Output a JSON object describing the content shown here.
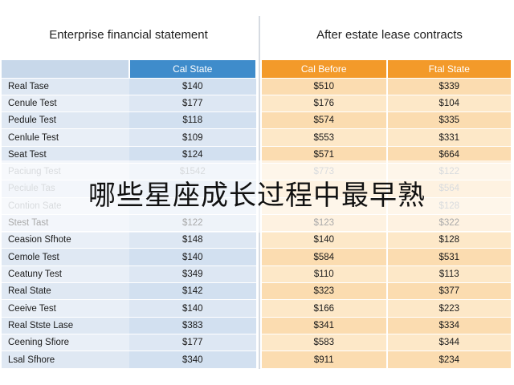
{
  "left_title": "Enterprise financial statement",
  "right_title": "After estate lease contracts",
  "left_table": {
    "header": "Cal State",
    "rows": [
      {
        "label": "Real Tase",
        "value": "$140"
      },
      {
        "label": "Cenule Test",
        "value": "$177"
      },
      {
        "label": "Pedule Test",
        "value": "$118"
      },
      {
        "label": "Cenlule Test",
        "value": "$109"
      },
      {
        "label": "Seat Test",
        "value": "$124"
      },
      {
        "label": "Paciung Test",
        "value": "$1542"
      },
      {
        "label": "Peciule Tas",
        "value": ""
      },
      {
        "label": "Contion Sate",
        "value": ""
      },
      {
        "label": "Stest Tast",
        "value": "$122"
      },
      {
        "label": "Ceasion Sfhote",
        "value": "$148"
      },
      {
        "label": "Cemole Test",
        "value": "$140"
      },
      {
        "label": "Ceatuny Test",
        "value": "$349"
      },
      {
        "label": "Real State",
        "value": "$142"
      },
      {
        "label": "Ceeive Test",
        "value": "$140"
      },
      {
        "label": "Real Stste Lase",
        "value": "$383"
      },
      {
        "label": "Ceening Sfiore",
        "value": "$177"
      },
      {
        "label": "Lsal Sfhore",
        "value": "$340"
      }
    ]
  },
  "right_table": {
    "headers": [
      "Cal Before",
      "Ftal State"
    ],
    "rows": [
      [
        "$510",
        "$339"
      ],
      [
        "$176",
        "$104"
      ],
      [
        "$574",
        "$335"
      ],
      [
        "$553",
        "$331"
      ],
      [
        "$571",
        "$664"
      ],
      [
        "$773",
        "$122"
      ],
      [
        "",
        "$564"
      ],
      [
        "",
        "$128"
      ],
      [
        "$123",
        "$322"
      ],
      [
        "$140",
        "$128"
      ],
      [
        "$584",
        "$531"
      ],
      [
        "$110",
        "$113"
      ],
      [
        "$323",
        "$377"
      ],
      [
        "$166",
        "$223"
      ],
      [
        "$341",
        "$334"
      ],
      [
        "$583",
        "$344"
      ],
      [
        "$911",
        "$234"
      ]
    ]
  },
  "overlay_text": "哪些星座成长过程中最早熟"
}
